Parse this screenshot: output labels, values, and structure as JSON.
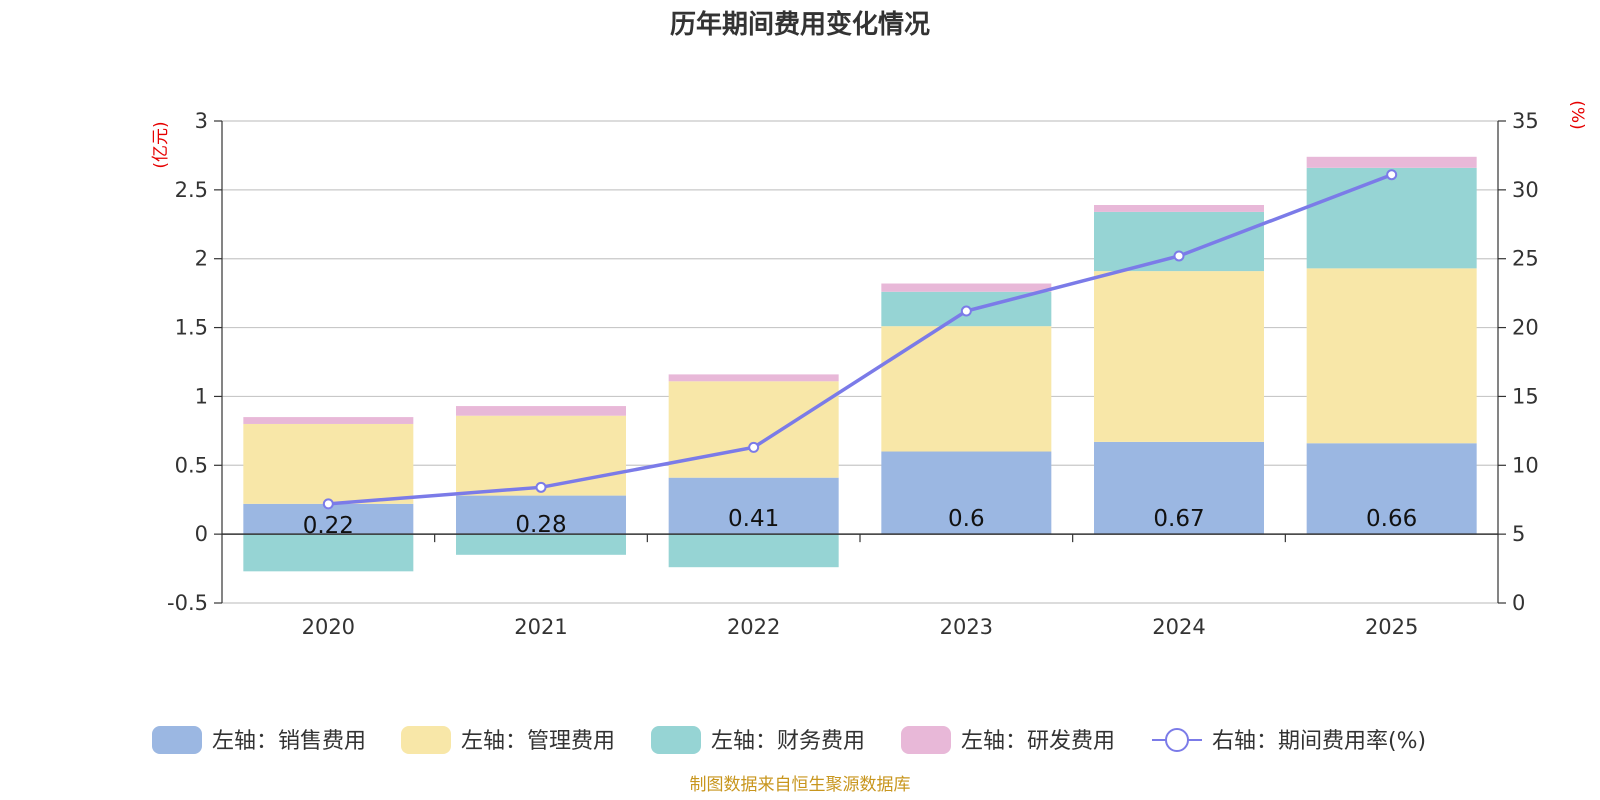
{
  "chart_data": {
    "type": "bar",
    "title": "历年期间费用变化情况",
    "categories": [
      "2020",
      "2021",
      "2022",
      "2023",
      "2024",
      "2025"
    ],
    "left_axis": {
      "unit": "(亿元)",
      "ylim": [
        -0.5,
        3
      ],
      "ticks": [
        "3",
        "2.5",
        "2",
        "1.5",
        "1",
        "0.5",
        "0",
        "-0.5"
      ],
      "tick_values": [
        3,
        2.5,
        2,
        1.5,
        1,
        0.5,
        0,
        -0.5
      ]
    },
    "right_axis": {
      "unit": "(%)",
      "ylim": [
        0,
        35
      ],
      "ticks": [
        "35",
        "30",
        "25",
        "20",
        "15",
        "10",
        "5",
        "0"
      ],
      "tick_values": [
        35,
        30,
        25,
        20,
        15,
        10,
        5,
        0
      ]
    },
    "series": [
      {
        "name": "左轴：销售费用",
        "axis": "left",
        "kind": "bar",
        "color": "#9bb7e2",
        "values": [
          0.22,
          0.28,
          0.41,
          0.6,
          0.67,
          0.66
        ],
        "labels": [
          "0.22",
          "0.28",
          "0.41",
          "0.6",
          "0.67",
          "0.66"
        ]
      },
      {
        "name": "左轴：管理费用",
        "axis": "left",
        "kind": "bar",
        "color": "#f8e7a8",
        "values": [
          0.58,
          0.58,
          0.7,
          0.91,
          1.24,
          1.27
        ]
      },
      {
        "name": "左轴：财务费用",
        "axis": "left",
        "kind": "bar",
        "color": "#96d4d4",
        "values": [
          -0.27,
          -0.15,
          -0.24,
          0.25,
          0.43,
          0.73
        ]
      },
      {
        "name": "左轴：研发费用",
        "axis": "left",
        "kind": "bar",
        "color": "#e8b8d8",
        "values": [
          0.05,
          0.07,
          0.05,
          0.06,
          0.05,
          0.08
        ]
      },
      {
        "name": "右轴：期间费用率(%)",
        "axis": "right",
        "kind": "line",
        "color": "#7b7be8",
        "values": [
          7.2,
          8.4,
          11.3,
          21.2,
          25.2,
          31.1
        ]
      }
    ],
    "source": "制图数据来自恒生聚源数据库"
  }
}
